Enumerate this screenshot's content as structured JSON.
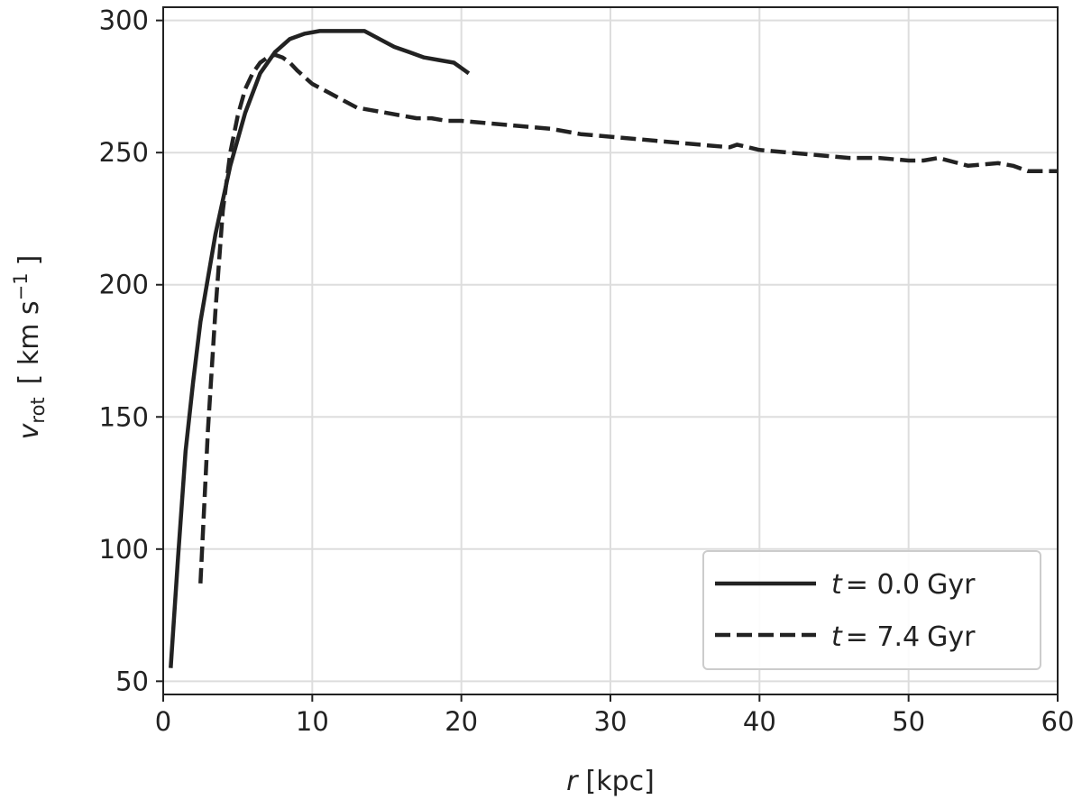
{
  "chart_data": {
    "type": "line",
    "xlabel": {
      "symbol": "r",
      "unit": "[kpc]"
    },
    "ylabel": {
      "symbol": "v",
      "subscript": "rot",
      "unit_open": "[ km s",
      "unit_exp": "−1",
      "unit_close": "]"
    },
    "xlim": [
      0,
      60
    ],
    "ylim": [
      45,
      305
    ],
    "xticks": [
      0,
      10,
      20,
      30,
      40,
      50,
      60
    ],
    "yticks": [
      50,
      100,
      150,
      200,
      250,
      300
    ],
    "grid": true,
    "legend_position": "lower-right",
    "series": [
      {
        "name": "t = 0.0 Gyr",
        "label_var": "t",
        "label_value": "= 0.0",
        "label_unit": "Gyr",
        "style": "solid",
        "x": [
          0.5,
          1.0,
          1.5,
          2.0,
          2.5,
          3.5,
          4.5,
          5.5,
          6.5,
          7.5,
          8.5,
          9.5,
          10.5,
          11.5,
          12.5,
          13.5,
          14.5,
          15.5,
          16.5,
          17.5,
          18.5,
          19.5,
          20.5
        ],
        "y": [
          55,
          97,
          137,
          163,
          186,
          219,
          245,
          265,
          280,
          288,
          293,
          295,
          296,
          296,
          296,
          296,
          293,
          290,
          288,
          286,
          285,
          284,
          280
        ]
      },
      {
        "name": "t = 7.4 Gyr",
        "label_var": "t",
        "label_value": "= 7.4",
        "label_unit": "Gyr",
        "style": "dashed",
        "x": [
          2.5,
          3.0,
          3.5,
          4.0,
          4.5,
          5.0,
          5.5,
          6.0,
          6.5,
          7.0,
          7.5,
          8.0,
          8.5,
          9.0,
          10.0,
          11.0,
          12.0,
          13.0,
          14.0,
          15.0,
          16.0,
          17.0,
          18.0,
          19.0,
          20.0,
          22.0,
          24.0,
          26.0,
          28.0,
          30.0,
          32.0,
          34.0,
          36.0,
          38.0,
          38.5,
          40.0,
          42.0,
          44.0,
          46.0,
          48.0,
          50.0,
          51.0,
          52.0,
          54.0,
          56.0,
          57.0,
          58.0,
          60.0
        ],
        "y": [
          87,
          145,
          190,
          228,
          250,
          264,
          274,
          280,
          284,
          286,
          287,
          286,
          284,
          281,
          276,
          273,
          270,
          267,
          266,
          265,
          264,
          263,
          263,
          262,
          262,
          261,
          260,
          259,
          257,
          256,
          255,
          254,
          253,
          252,
          253,
          251,
          250,
          249,
          248,
          248,
          247,
          247,
          248,
          245,
          246,
          245,
          243,
          243
        ]
      }
    ]
  }
}
